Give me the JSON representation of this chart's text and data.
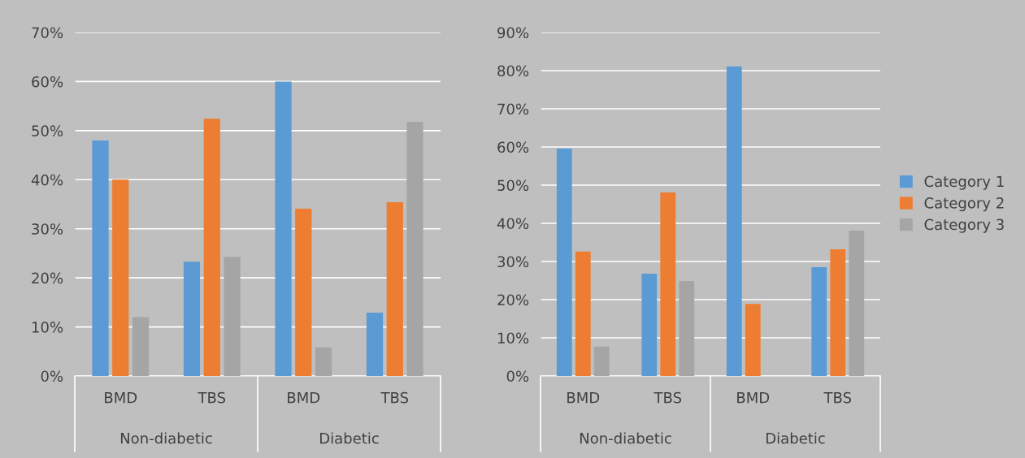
{
  "chart_data": [
    {
      "type": "bar",
      "categories": [
        "BMD",
        "TBS",
        "BMD",
        "TBS"
      ],
      "annotations": [
        "Non-diabetic",
        "Diabetic"
      ],
      "series": [
        {
          "color": "#5b9bd5",
          "values": [
            48,
            23.3,
            60,
            12.9
          ]
        },
        {
          "color": "#ed7d31",
          "values": [
            40,
            52.4,
            34.1,
            35.4
          ]
        },
        {
          "color": "#a5a5a5",
          "values": [
            12,
            24.3,
            5.8,
            51.8
          ]
        }
      ],
      "ylim": [
        0,
        70
      ],
      "yticks": [
        {
          "value": 0,
          "label": "0%"
        },
        {
          "value": 10,
          "label": "10%"
        },
        {
          "value": 20,
          "label": "20%"
        },
        {
          "value": 30,
          "label": "30%"
        },
        {
          "value": 40,
          "label": "40%"
        },
        {
          "value": 50,
          "label": "50%"
        },
        {
          "value": 60,
          "label": "60%"
        },
        {
          "value": 70,
          "label": "70%"
        }
      ],
      "grid": "y",
      "legend": false
    },
    {
      "type": "bar",
      "categories": [
        "BMD",
        "TBS",
        "BMD",
        "TBS"
      ],
      "annotations": [
        "Non-diabetic",
        "Diabetic"
      ],
      "series": [
        {
          "name": "Category 1",
          "color": "#5b9bd5",
          "values": [
            59.6,
            26.8,
            81.1,
            28.5
          ]
        },
        {
          "name": "Category 2",
          "color": "#ed7d31",
          "values": [
            32.6,
            48.1,
            18.9,
            33.2
          ]
        },
        {
          "name": "Category 3",
          "color": "#a5a5a5",
          "values": [
            7.7,
            24.9,
            null,
            38.1
          ]
        }
      ],
      "ylim": [
        0,
        90
      ],
      "yticks": [
        {
          "value": 0,
          "label": "0%"
        },
        {
          "value": 10,
          "label": "10%"
        },
        {
          "value": 20,
          "label": "20%"
        },
        {
          "value": 30,
          "label": "30%"
        },
        {
          "value": 40,
          "label": "40%"
        },
        {
          "value": 50,
          "label": "50%"
        },
        {
          "value": 60,
          "label": "60%"
        },
        {
          "value": 70,
          "label": "70%"
        },
        {
          "value": 80,
          "label": "80%"
        },
        {
          "value": 90,
          "label": "90%"
        }
      ],
      "grid": "y",
      "legend": "right"
    }
  ]
}
